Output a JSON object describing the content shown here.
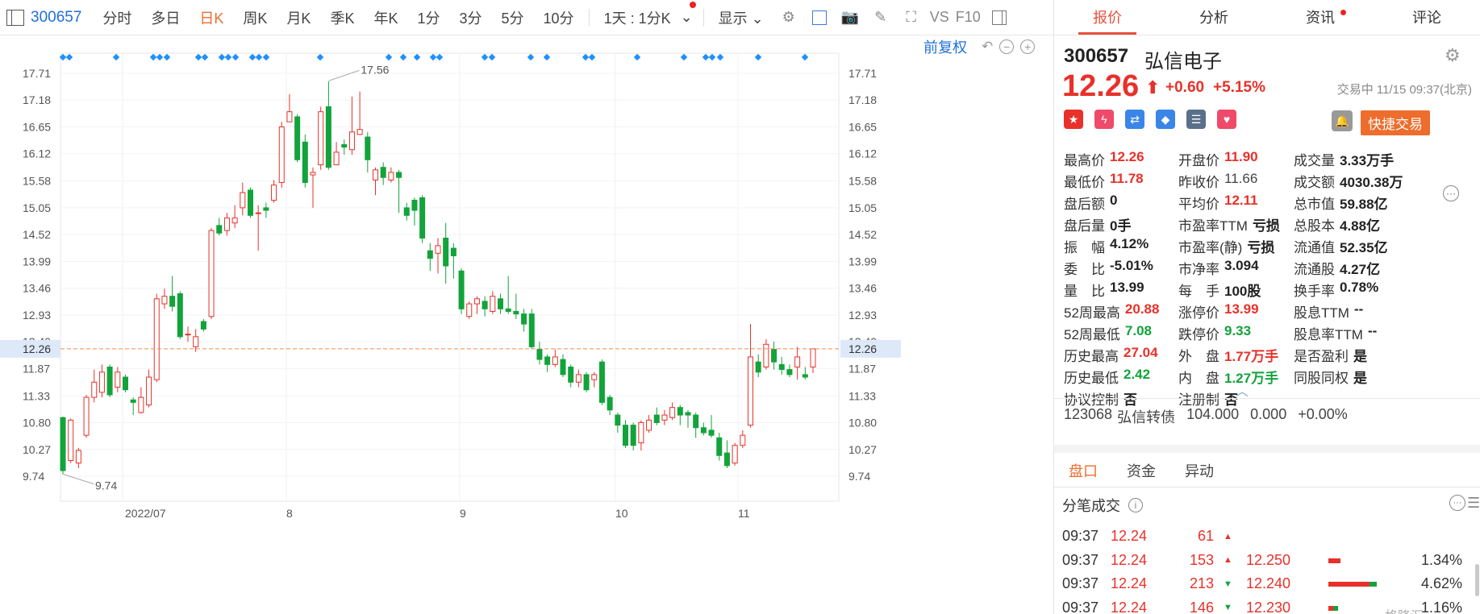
{
  "toolbar": {
    "stock_code": "300657",
    "periods": [
      "分时",
      "多日",
      "日K",
      "周K",
      "月K",
      "季K",
      "年K",
      "1分",
      "3分",
      "5分",
      "10分",
      "1天 : 1分K"
    ],
    "active_period": "日K",
    "display_label": "显示",
    "vs_label": "VS",
    "f10_label": "F10"
  },
  "chart": {
    "adjust_label": "前复权",
    "price_ticks": [
      "17.71",
      "17.18",
      "16.65",
      "16.12",
      "15.58",
      "15.05",
      "14.52",
      "13.99",
      "13.46",
      "12.93",
      "12.40",
      "11.87",
      "11.33",
      "10.80",
      "10.27",
      "9.74"
    ],
    "current_price_label": "12.26",
    "high_annotation": "17.56",
    "low_annotation": "9.74",
    "date_labels": [
      "2022/07",
      "8",
      "9",
      "10",
      "11"
    ],
    "colors": {
      "up": "#e8312a",
      "down": "#13a33b",
      "marker": "#1e90ff",
      "current_line": "#f08a4b"
    }
  },
  "chart_data": {
    "type": "candlestick",
    "ylim": [
      9.5,
      18.0
    ],
    "x_labels": [
      "2022/07",
      "8",
      "9",
      "10",
      "11"
    ],
    "candles": [
      [
        10.9,
        9.85,
        10.92,
        9.78
      ],
      [
        10.05,
        10.85,
        10.88,
        10.0
      ],
      [
        10.0,
        10.25,
        10.3,
        9.9
      ],
      [
        10.55,
        11.3,
        11.35,
        10.5
      ],
      [
        11.3,
        11.6,
        11.85,
        11.2
      ],
      [
        11.4,
        11.8,
        11.95,
        11.3
      ],
      [
        11.9,
        11.35,
        11.95,
        11.3
      ],
      [
        11.5,
        11.8,
        11.9,
        11.4
      ],
      [
        11.7,
        11.45,
        11.75,
        11.4
      ],
      [
        11.25,
        11.2,
        11.3,
        10.95
      ],
      [
        11.0,
        11.3,
        11.5,
        10.98
      ],
      [
        11.15,
        11.7,
        11.85,
        11.1
      ],
      [
        11.65,
        13.25,
        13.35,
        11.6
      ],
      [
        13.15,
        13.3,
        13.45,
        13.05
      ],
      [
        13.3,
        13.1,
        13.7,
        13.0
      ],
      [
        13.35,
        12.5,
        13.4,
        12.45
      ],
      [
        12.55,
        12.55,
        12.7,
        12.4
      ],
      [
        12.3,
        12.5,
        12.65,
        12.2
      ],
      [
        12.8,
        12.65,
        12.85,
        12.6
      ],
      [
        12.9,
        14.6,
        14.65,
        12.85
      ],
      [
        14.7,
        14.55,
        14.85,
        14.5
      ],
      [
        14.6,
        14.85,
        14.95,
        14.5
      ],
      [
        14.75,
        14.85,
        15.1,
        14.65
      ],
      [
        15.05,
        15.35,
        15.55,
        14.9
      ],
      [
        15.4,
        14.9,
        15.45,
        14.85
      ],
      [
        14.95,
        14.95,
        15.1,
        14.2
      ],
      [
        15.05,
        15.0,
        15.15,
        14.85
      ],
      [
        15.2,
        15.5,
        15.6,
        15.15
      ],
      [
        15.55,
        16.65,
        16.75,
        15.45
      ],
      [
        16.75,
        16.95,
        17.3,
        16.8
      ],
      [
        16.85,
        16.0,
        16.9,
        15.95
      ],
      [
        16.35,
        15.55,
        16.5,
        15.45
      ],
      [
        15.7,
        15.75,
        15.85,
        15.05
      ],
      [
        15.9,
        16.95,
        17.05,
        15.8
      ],
      [
        17.05,
        15.85,
        17.55,
        15.8
      ],
      [
        15.9,
        16.15,
        16.35,
        15.9
      ],
      [
        16.3,
        16.25,
        16.4,
        16.1
      ],
      [
        16.2,
        16.55,
        17.25,
        16.1
      ],
      [
        16.5,
        16.6,
        17.35,
        16.5
      ],
      [
        16.45,
        16.0,
        16.55,
        15.75
      ],
      [
        15.6,
        15.8,
        15.85,
        15.3
      ],
      [
        15.85,
        15.65,
        15.95,
        15.5
      ],
      [
        15.6,
        15.75,
        15.85,
        15.55
      ],
      [
        15.75,
        15.65,
        15.8,
        14.95
      ],
      [
        15.05,
        14.9,
        15.15,
        14.8
      ],
      [
        15.2,
        15.0,
        15.25,
        14.7
      ],
      [
        15.25,
        14.45,
        15.3,
        14.35
      ],
      [
        14.2,
        14.05,
        14.35,
        13.8
      ],
      [
        14.15,
        14.3,
        14.45,
        13.75
      ],
      [
        14.45,
        13.9,
        14.75,
        13.55
      ],
      [
        14.25,
        14.1,
        14.35,
        13.65
      ],
      [
        13.8,
        13.05,
        13.85,
        12.95
      ],
      [
        12.9,
        13.15,
        13.2,
        12.85
      ],
      [
        13.15,
        13.25,
        13.3,
        12.95
      ],
      [
        13.2,
        13.05,
        13.3,
        12.9
      ],
      [
        13.0,
        13.3,
        13.4,
        12.95
      ],
      [
        13.25,
        13.05,
        13.35,
        12.95
      ],
      [
        13.05,
        13.0,
        13.7,
        12.95
      ],
      [
        13.0,
        12.95,
        13.35,
        12.85
      ],
      [
        12.95,
        12.75,
        13.05,
        12.6
      ],
      [
        12.95,
        12.3,
        13.05,
        12.25
      ],
      [
        12.25,
        12.05,
        12.4,
        11.95
      ],
      [
        12.1,
        11.95,
        12.15,
        11.8
      ],
      [
        11.95,
        12.1,
        12.25,
        11.9
      ],
      [
        12.05,
        11.75,
        12.15,
        11.7
      ],
      [
        11.9,
        11.6,
        11.95,
        11.5
      ],
      [
        11.6,
        11.75,
        11.85,
        11.5
      ],
      [
        11.75,
        11.45,
        11.8,
        11.4
      ],
      [
        11.65,
        11.75,
        11.8,
        11.5
      ],
      [
        12.0,
        11.2,
        12.05,
        11.15
      ],
      [
        11.3,
        11.05,
        11.35,
        10.95
      ],
      [
        10.95,
        10.75,
        11.0,
        10.6
      ],
      [
        10.75,
        10.35,
        10.85,
        10.3
      ],
      [
        10.75,
        10.35,
        10.8,
        10.25
      ],
      [
        10.4,
        10.8,
        10.85,
        10.25
      ],
      [
        10.65,
        10.85,
        10.95,
        10.6
      ],
      [
        10.95,
        10.8,
        11.1,
        10.75
      ],
      [
        10.85,
        10.95,
        11.05,
        10.75
      ],
      [
        10.9,
        11.1,
        11.2,
        10.85
      ],
      [
        11.1,
        10.95,
        11.15,
        10.75
      ],
      [
        11.0,
        10.95,
        11.05,
        10.7
      ],
      [
        10.95,
        10.7,
        11.0,
        10.5
      ],
      [
        10.7,
        10.6,
        10.8,
        10.55
      ],
      [
        10.65,
        10.55,
        10.95,
        10.5
      ],
      [
        10.5,
        10.15,
        10.6,
        10.05
      ],
      [
        10.2,
        9.95,
        10.45,
        9.9
      ],
      [
        10.0,
        10.35,
        10.4,
        9.95
      ],
      [
        10.35,
        10.55,
        10.65,
        10.3
      ],
      [
        10.75,
        12.1,
        12.75,
        10.7
      ],
      [
        12.0,
        11.8,
        12.15,
        11.7
      ],
      [
        11.9,
        12.35,
        12.45,
        11.85
      ],
      [
        12.25,
        12.0,
        12.4,
        11.85
      ],
      [
        11.95,
        11.85,
        12.1,
        11.75
      ],
      [
        11.85,
        11.75,
        11.95,
        11.7
      ],
      [
        11.9,
        12.1,
        12.3,
        11.65
      ],
      [
        11.75,
        11.7,
        11.9,
        11.65
      ],
      [
        11.9,
        12.26,
        12.26,
        11.78
      ]
    ],
    "markers_row": true
  },
  "quote": {
    "code": "300657",
    "name": "弘信电子",
    "price": "12.26",
    "change": "+0.60",
    "change_pct": "+5.15%",
    "status": "交易中 11/15 09:37(北京)",
    "trade_button": "快捷交易",
    "rows": [
      [
        {
          "l": "最高价",
          "v": "12.26",
          "c": "red"
        },
        {
          "l": "开盘价",
          "v": "11.90",
          "c": "red"
        },
        {
          "l": "成交量",
          "v": "3.33万手",
          "c": "black"
        }
      ],
      [
        {
          "l": "最低价",
          "v": "11.78",
          "c": "red"
        },
        {
          "l": "昨收价",
          "v": "11.66",
          "c": "normal"
        },
        {
          "l": "成交额",
          "v": "4030.38万",
          "c": "black"
        }
      ],
      [
        {
          "l": "盘后额",
          "v": "0",
          "c": "black"
        },
        {
          "l": "平均价",
          "v": "12.11",
          "c": "red"
        },
        {
          "l": "总市值",
          "v": "59.88亿",
          "c": "black"
        }
      ],
      [
        {
          "l": "盘后量",
          "v": "0手",
          "c": "black"
        },
        {
          "l": "市盈率TTM",
          "v": "亏损",
          "c": "black"
        },
        {
          "l": "总股本",
          "v": "4.88亿",
          "c": "black"
        }
      ],
      [
        {
          "l": "振　幅",
          "v": "4.12%",
          "c": "black"
        },
        {
          "l": "市盈率(静)",
          "v": "亏损",
          "c": "black"
        },
        {
          "l": "流通值",
          "v": "52.35亿",
          "c": "black"
        }
      ],
      [
        {
          "l": "委　比",
          "v": "-5.01%",
          "c": "black"
        },
        {
          "l": "市净率",
          "v": "3.094",
          "c": "black"
        },
        {
          "l": "流通股",
          "v": "4.27亿",
          "c": "black"
        }
      ],
      [
        {
          "l": "量　比",
          "v": "13.99",
          "c": "black"
        },
        {
          "l": "每　手",
          "v": "100股",
          "c": "black"
        },
        {
          "l": "换手率",
          "v": "0.78%",
          "c": "black"
        }
      ],
      [
        {
          "l": "52周最高",
          "v": "20.88",
          "c": "red"
        },
        {
          "l": "涨停价",
          "v": "13.99",
          "c": "red"
        },
        {
          "l": "股息TTM",
          "v": "--",
          "c": "black"
        }
      ],
      [
        {
          "l": "52周最低",
          "v": "7.08",
          "c": "green"
        },
        {
          "l": "跌停价",
          "v": "9.33",
          "c": "green"
        },
        {
          "l": "股息率TTM",
          "v": "--",
          "c": "black"
        }
      ],
      [
        {
          "l": "历史最高",
          "v": "27.04",
          "c": "red"
        },
        {
          "l": "外　盘",
          "v": "1.77万手",
          "c": "red"
        },
        {
          "l": "是否盈利",
          "v": "是",
          "c": "black"
        }
      ],
      [
        {
          "l": "历史最低",
          "v": "2.42",
          "c": "green"
        },
        {
          "l": "内　盘",
          "v": "1.27万手",
          "c": "green"
        },
        {
          "l": "同股同权",
          "v": "是",
          "c": "black"
        }
      ],
      [
        {
          "l": "协议控制",
          "v": "否",
          "c": "black"
        },
        {
          "l": "注册制",
          "v": "否",
          "c": "black"
        },
        {
          "l": "",
          "v": "",
          "c": "black"
        }
      ]
    ],
    "bond": {
      "code": "123068",
      "name": "弘信转债",
      "price": "104.000",
      "change": "0.000",
      "pct": "+0.00%"
    }
  },
  "tabs": [
    "报价",
    "分析",
    "资讯",
    "评论"
  ],
  "subtabs": [
    "盘口",
    "资金",
    "异动"
  ],
  "trades": {
    "title": "分笔成交",
    "rows": [
      {
        "time": "09:37",
        "price": "12.24",
        "vol": "61",
        "dir": "up"
      },
      {
        "time": "09:37",
        "price": "12.24",
        "vol": "153",
        "dir": "up"
      },
      {
        "time": "09:37",
        "price": "12.24",
        "vol": "213",
        "dir": "down"
      },
      {
        "time": "09:37",
        "price": "12.24",
        "vol": "146",
        "dir": "down"
      }
    ],
    "levels": [
      {
        "price": "12.250",
        "pct": "1.34%",
        "red": 0.25,
        "green": 0.0
      },
      {
        "price": "12.240",
        "pct": "4.62%",
        "red": 0.85,
        "green": 0.15
      },
      {
        "price": "12.230",
        "pct": "1.16%",
        "red": 0.1,
        "green": 0.1
      }
    ],
    "watermark": "格隆汇"
  }
}
